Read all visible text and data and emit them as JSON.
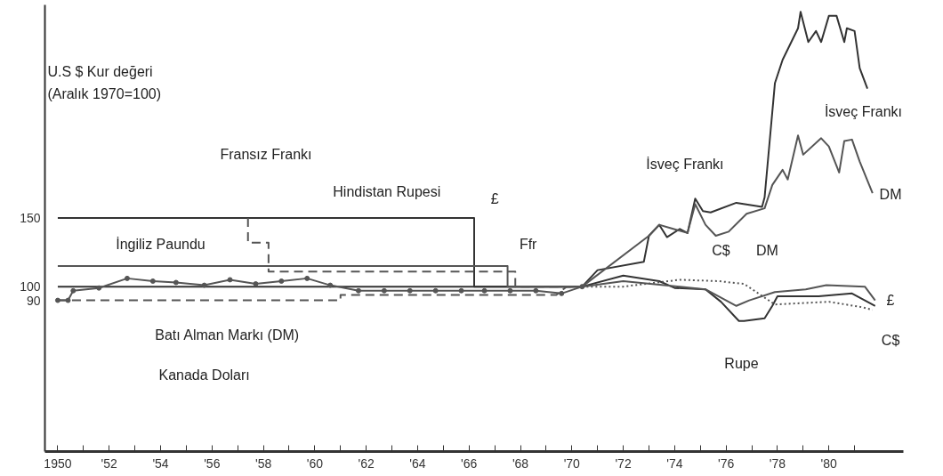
{
  "chart_data": {
    "type": "line",
    "ylabel": "U.S $ Kur değeri\n(Aralık 1970=100)",
    "xlim": [
      1949.5,
      1982.9
    ],
    "ylim": [
      -20,
      305
    ],
    "xticks": [
      1950,
      {
        "value": 1951,
        "label": null
      },
      {
        "value": 1952,
        "label": "'52"
      },
      {
        "value": 1953,
        "label": null
      },
      {
        "value": 1954,
        "label": "'54"
      },
      {
        "value": 1955,
        "label": null
      },
      {
        "value": 1956,
        "label": "'56"
      },
      {
        "value": 1957,
        "label": null
      },
      {
        "value": 1958,
        "label": "'58"
      },
      {
        "value": 1959,
        "label": null
      },
      {
        "value": 1960,
        "label": "'60"
      },
      {
        "value": 1961,
        "label": null
      },
      {
        "value": 1962,
        "label": "'62"
      },
      {
        "value": 1963,
        "label": null
      },
      {
        "value": 1964,
        "label": "'64"
      },
      {
        "value": 1965,
        "label": null
      },
      {
        "value": 1966,
        "label": "'66"
      },
      {
        "value": 1967,
        "label": null
      },
      {
        "value": 1968,
        "label": "'68"
      },
      {
        "value": 1969,
        "label": null
      },
      {
        "value": 1970,
        "label": "'70"
      },
      {
        "value": 1971,
        "label": null
      },
      {
        "value": 1972,
        "label": "'72"
      },
      {
        "value": 1973,
        "label": null
      },
      {
        "value": 1974,
        "label": "'74"
      },
      {
        "value": 1975,
        "label": null
      },
      {
        "value": 1976,
        "label": "'76"
      },
      {
        "value": 1977,
        "label": null
      },
      {
        "value": 1978,
        "label": "'78"
      },
      {
        "value": 1979,
        "label": null
      },
      {
        "value": 1980,
        "label": "'80"
      },
      {
        "value": 1981,
        "label": null
      }
    ],
    "yticks": [
      90,
      100,
      150
    ],
    "series": [
      {
        "color": "#333333",
        "line_style": "solid",
        "x": [
          1950,
          1966.2,
          1966.2,
          1970.4,
          1972.0,
          1973.4,
          1974.0,
          1975.2,
          1975.8,
          1976.5,
          1976.7,
          1977.5,
          1977.8,
          1978.0,
          1979.6,
          1980.9,
          1981.8
        ],
        "values": [
          150,
          150,
          100,
          100,
          108,
          104,
          99,
          98,
          89,
          75,
          75,
          77,
          86,
          93,
          93,
          95,
          86
        ]
      },
      {
        "color": "#333333",
        "line_style": "solid",
        "x": [
          1950,
          1970.4,
          1971.0,
          1972.8,
          1973.0,
          1973.4,
          1973.7,
          1974.2,
          1974.5,
          1974.8,
          1975.1,
          1975.4,
          1976.4,
          1977.4,
          1977.5,
          1977.9,
          1978.2,
          1978.8,
          1978.9,
          1979.2,
          1979.5,
          1979.7,
          1980.0,
          1980.3,
          1980.6,
          1980.7,
          1981.0,
          1981.2,
          1981.5
        ],
        "values": [
          100,
          100,
          112,
          118,
          137,
          145,
          136,
          142,
          139,
          164,
          155,
          154,
          161,
          158,
          165,
          248,
          265,
          288,
          300,
          278,
          286,
          278,
          297,
          297,
          278,
          288,
          286,
          259,
          244
        ]
      },
      {
        "color": "#555555",
        "line_style": "dashed",
        "x": [
          1950,
          1961.0,
          1961.0,
          1969.4,
          1969.8,
          1970.4
        ],
        "values": [
          90,
          90,
          94,
          94,
          100,
          100
        ]
      },
      {
        "color": "#555555",
        "line_style": "solid",
        "x": [
          1970.4,
          1973.0,
          1973.4,
          1974.5,
          1974.8,
          1975.2,
          1975.6,
          1976.1,
          1976.8,
          1977.5,
          1977.8,
          1978.2,
          1978.4,
          1978.8,
          1979.0,
          1979.7,
          1980.0,
          1980.4,
          1980.6,
          1980.9,
          1981.2,
          1981.7
        ],
        "values": [
          100,
          137,
          145,
          139,
          160,
          145,
          137,
          140,
          153,
          157,
          174,
          185,
          178,
          210,
          196,
          208,
          202,
          183,
          206,
          207,
          191,
          168
        ]
      },
      {
        "color": "#555555",
        "line_style": "solid",
        "x": [
          1950,
          1967.5,
          1967.5,
          1970.4,
          1972.0,
          1975.2,
          1976.4,
          1976.9,
          1977.9,
          1979.1,
          1979.9,
          1981.4,
          1981.8
        ],
        "values": [
          115,
          115,
          100,
          100,
          104,
          98,
          86,
          90,
          96,
          98,
          101,
          100,
          90
        ]
      },
      {
        "color": "#555555",
        "line_style": "dashed",
        "x": [
          1957.4,
          1957.4,
          1958.2,
          1958.2,
          1967.8,
          1967.8,
          1970.4
        ],
        "values": [
          150,
          132,
          132,
          111,
          111,
          100,
          100
        ]
      },
      {
        "color": "#555555",
        "line_style": "solid",
        "marker": "circle",
        "x": [
          1950,
          1950.4,
          1950.6,
          1951.6,
          1952.7,
          1953.7,
          1954.6,
          1955.7,
          1956.7,
          1957.7,
          1958.7,
          1959.7,
          1960.6,
          1961.7,
          1962.7,
          1963.7,
          1964.7,
          1965.7,
          1966.6,
          1967.6,
          1968.6,
          1969.6,
          1970.4
        ],
        "values": [
          90,
          90,
          97,
          99,
          106,
          104,
          103,
          101,
          105,
          102,
          104,
          106,
          101,
          97,
          97,
          97,
          97,
          97,
          97,
          97,
          97,
          95,
          100
        ]
      },
      {
        "color": "#555555",
        "line_style": "dotted",
        "x": [
          1970.4,
          1972.0,
          1974.2,
          1975.7,
          1976.7,
          1977.9,
          1980.0,
          1981.3,
          1981.7
        ],
        "values": [
          100,
          100,
          105,
          104,
          102,
          87,
          89,
          85,
          83
        ]
      }
    ],
    "annotations": [
      "Fransız Frankı",
      "Hindistan Rupesi",
      "İngiliz Paundu",
      "£",
      "Ffr",
      "Batı Alman Markı (DM)",
      "Kanada Doları",
      "İsveç Frankı",
      "İsveç Frankı",
      "DM",
      "DM",
      "C$",
      "£",
      "C$",
      "Rupe"
    ]
  }
}
